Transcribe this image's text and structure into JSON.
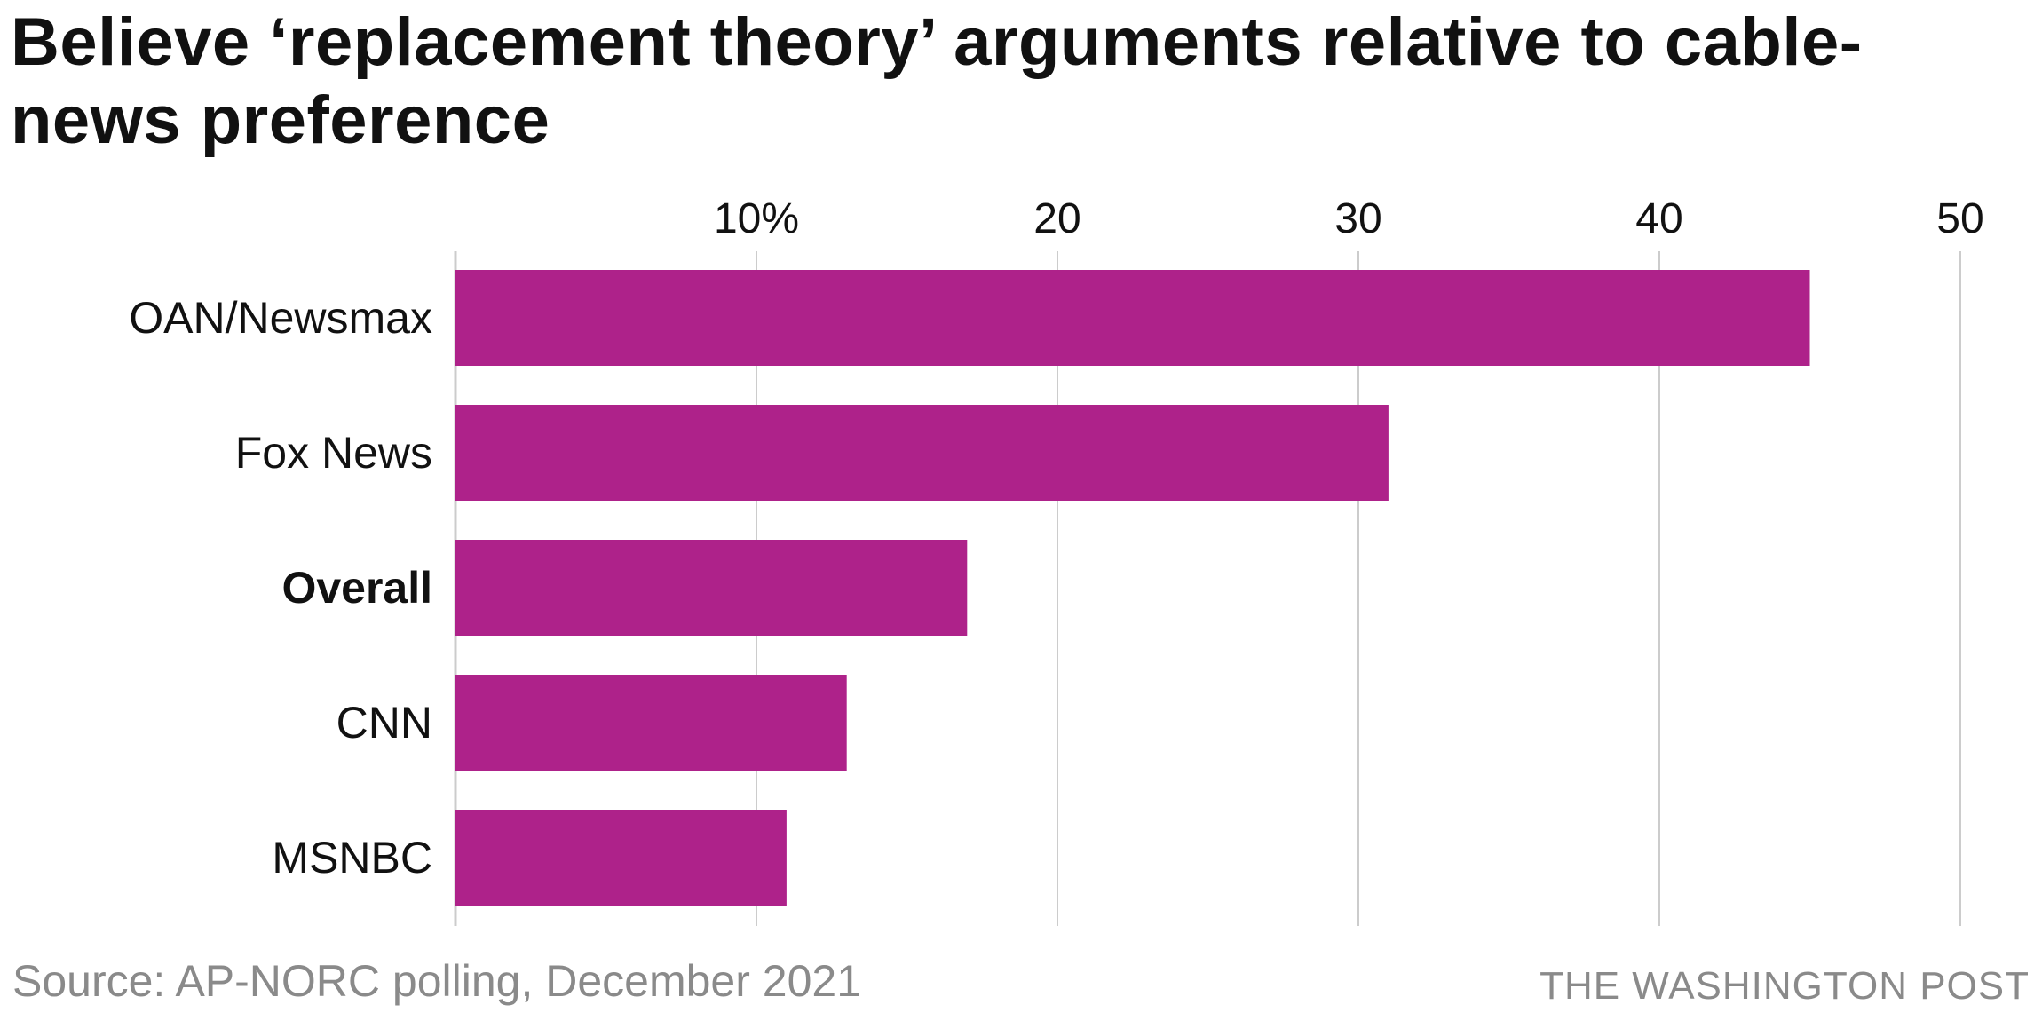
{
  "chart_data": {
    "type": "bar",
    "orientation": "horizontal",
    "title": "Believe ‘replacement theory’ arguments relative to cable-news preference",
    "categories": [
      "OAN/Newsmax",
      "Fox News",
      "Overall",
      "CNN",
      "MSNBC"
    ],
    "values": [
      45,
      31,
      17,
      13,
      11
    ],
    "highlight_category": "Overall",
    "xlim": [
      0,
      50
    ],
    "xticks": [
      10,
      20,
      30,
      40,
      50
    ],
    "xtick_labels": [
      "10%",
      "20",
      "30",
      "40",
      "50"
    ],
    "xlabel": "",
    "ylabel": "",
    "grid": true,
    "bar_color": "#ae228a",
    "grid_color": "#cccccc",
    "source": "Source: AP-NORC polling, December 2021",
    "credit": "THE WASHINGTON POST"
  }
}
